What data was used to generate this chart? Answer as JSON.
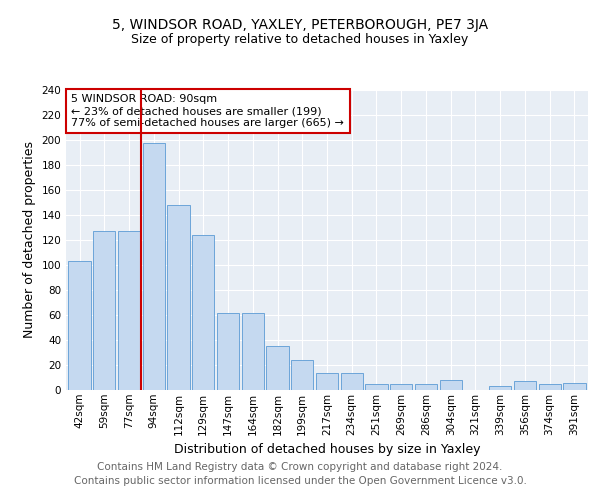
{
  "title_line1": "5, WINDSOR ROAD, YAXLEY, PETERBOROUGH, PE7 3JA",
  "title_line2": "Size of property relative to detached houses in Yaxley",
  "xlabel": "Distribution of detached houses by size in Yaxley",
  "ylabel": "Number of detached properties",
  "categories": [
    "42sqm",
    "59sqm",
    "77sqm",
    "94sqm",
    "112sqm",
    "129sqm",
    "147sqm",
    "164sqm",
    "182sqm",
    "199sqm",
    "217sqm",
    "234sqm",
    "251sqm",
    "269sqm",
    "286sqm",
    "304sqm",
    "321sqm",
    "339sqm",
    "356sqm",
    "374sqm",
    "391sqm"
  ],
  "values": [
    103,
    127,
    127,
    198,
    148,
    124,
    62,
    62,
    35,
    24,
    14,
    14,
    5,
    5,
    5,
    8,
    0,
    3,
    7,
    5,
    6
  ],
  "bar_color": "#c5d9f0",
  "bar_edge_color": "#5b9bd5",
  "marker_index": 3,
  "marker_color": "#cc0000",
  "annotation_text": "5 WINDSOR ROAD: 90sqm\n← 23% of detached houses are smaller (199)\n77% of semi-detached houses are larger (665) →",
  "annotation_box_color": "white",
  "annotation_box_edge": "#cc0000",
  "ylim": [
    0,
    240
  ],
  "yticks": [
    0,
    20,
    40,
    60,
    80,
    100,
    120,
    140,
    160,
    180,
    200,
    220,
    240
  ],
  "bg_color": "#e8eef5",
  "footer_line1": "Contains HM Land Registry data © Crown copyright and database right 2024.",
  "footer_line2": "Contains public sector information licensed under the Open Government Licence v3.0.",
  "title_fontsize": 10,
  "subtitle_fontsize": 9,
  "footer_fontsize": 7.5,
  "axis_label_fontsize": 9,
  "tick_fontsize": 7.5,
  "annot_fontsize": 8
}
